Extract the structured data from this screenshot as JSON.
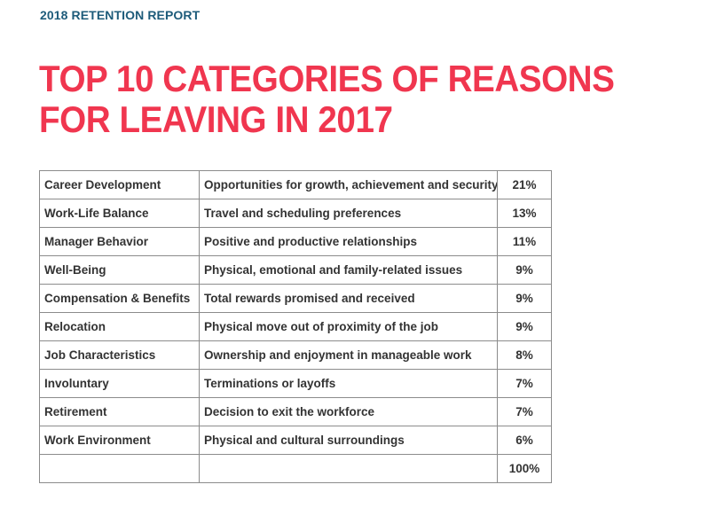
{
  "header": {
    "report_label": "2018 RETENTION REPORT",
    "title_line1": "TOP 10 CATEGORIES OF REASONS",
    "title_line2": "FOR LEAVING IN 2017"
  },
  "table": {
    "rows": [
      {
        "category": "Career Development",
        "description": "Opportunities for growth, achievement and security",
        "percent": "21%"
      },
      {
        "category": "Work-Life Balance",
        "description": "Travel and scheduling preferences",
        "percent": "13%"
      },
      {
        "category": "Manager Behavior",
        "description": "Positive and productive relationships",
        "percent": "11%"
      },
      {
        "category": "Well-Being",
        "description": "Physical, emotional and family-related issues",
        "percent": "9%"
      },
      {
        "category": "Compensation & Benefits",
        "description": "Total rewards promised and received",
        "percent": "9%"
      },
      {
        "category": "Relocation",
        "description": "Physical move out of proximity of the job",
        "percent": "9%"
      },
      {
        "category": "Job Characteristics",
        "description": "Ownership and enjoyment in manageable work",
        "percent": "8%"
      },
      {
        "category": "Involuntary",
        "description": "Terminations or layoffs",
        "percent": "7%"
      },
      {
        "category": "Retirement",
        "description": "Decision to exit the workforce",
        "percent": "7%"
      },
      {
        "category": "Work Environment",
        "description": "Physical and cultural surroundings",
        "percent": "6%"
      }
    ],
    "total": {
      "category": "",
      "description": "",
      "percent": "100%"
    }
  },
  "colors": {
    "title": "#f0364f",
    "report_label": "#1d5b7a",
    "text": "#333333",
    "border": "#8c8c8c"
  }
}
